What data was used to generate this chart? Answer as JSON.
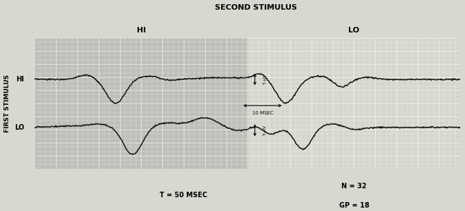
{
  "title_top": "SECOND STIMULUS",
  "ylabel": "FIRST STIMULUS",
  "hi_label_top": "HI",
  "lo_label_top": "LO",
  "hi_label_left": "HI",
  "lo_label_left": "LO",
  "bottom_left": "T = 50 MSEC",
  "bottom_right": "N = 32",
  "bottom_right2": "GP = 18",
  "bg_color_left": "#b8b8b0",
  "bg_color_right": "#c8c8be",
  "grid_color": "#e0e0d5",
  "line_color": "#111111",
  "fig_bg": "#d8d8d0",
  "ax_bg": "#c0c0b8",
  "grid_minor_color": "#d0d0c8",
  "grid_major_color": "#e8e8e0"
}
